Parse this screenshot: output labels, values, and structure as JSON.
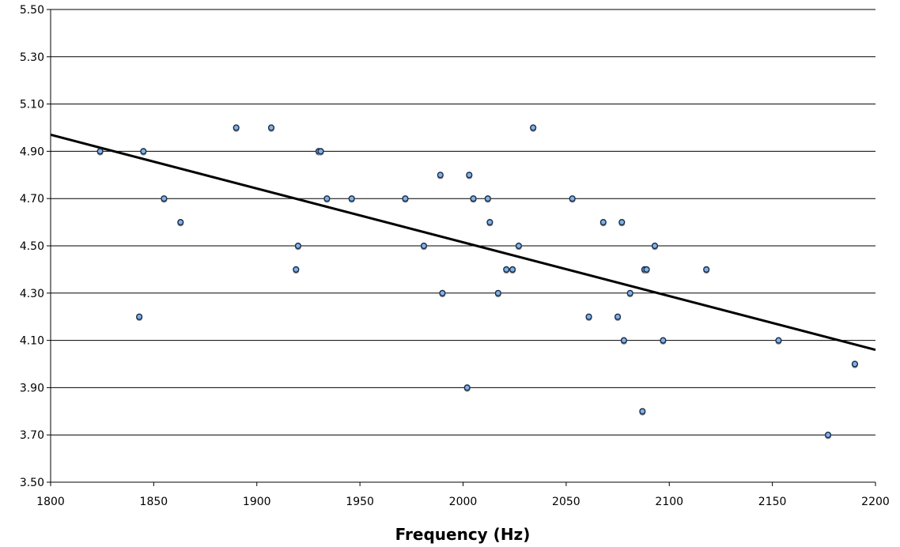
{
  "chart_data": {
    "type": "scatter",
    "title": "",
    "xlabel": "Frequency (Hz)",
    "ylabel": "",
    "xlim": [
      1800,
      2200
    ],
    "ylim": [
      3.5,
      5.5
    ],
    "xticks": [
      "1800",
      "1850",
      "1900",
      "1950",
      "2000",
      "2050",
      "2100",
      "2150",
      "2200"
    ],
    "yticks": [
      "3.50",
      "3.70",
      "3.90",
      "4.10",
      "4.30",
      "4.50",
      "4.70",
      "4.90",
      "5.10",
      "5.30",
      "5.50"
    ],
    "grid": "horizontal",
    "marker_color": "#7fb2e5",
    "marker_edge": "#1a2a4a",
    "trendline": {
      "x": [
        1800,
        2200
      ],
      "y": [
        4.97,
        4.06
      ],
      "color": "#000000"
    },
    "series": [
      {
        "points": [
          [
            1824,
            4.9
          ],
          [
            1843,
            4.2
          ],
          [
            1845,
            4.9
          ],
          [
            1855,
            4.7
          ],
          [
            1863,
            4.6
          ],
          [
            1890,
            5.0
          ],
          [
            1907,
            5.0
          ],
          [
            1919,
            4.4
          ],
          [
            1920,
            4.5
          ],
          [
            1930,
            4.9
          ],
          [
            1931,
            4.9
          ],
          [
            1934,
            4.7
          ],
          [
            1946,
            4.7
          ],
          [
            1972,
            4.7
          ],
          [
            1981,
            4.5
          ],
          [
            1989,
            4.8
          ],
          [
            1990,
            4.3
          ],
          [
            2002,
            3.9
          ],
          [
            2003,
            4.8
          ],
          [
            2005,
            4.7
          ],
          [
            2012,
            4.7
          ],
          [
            2013,
            4.6
          ],
          [
            2017,
            4.3
          ],
          [
            2021,
            4.4
          ],
          [
            2024,
            4.4
          ],
          [
            2027,
            4.5
          ],
          [
            2034,
            5.0
          ],
          [
            2053,
            4.7
          ],
          [
            2061,
            4.2
          ],
          [
            2068,
            4.6
          ],
          [
            2075,
            4.2
          ],
          [
            2077,
            4.6
          ],
          [
            2078,
            4.1
          ],
          [
            2081,
            4.3
          ],
          [
            2087,
            3.8
          ],
          [
            2088,
            4.4
          ],
          [
            2089,
            4.4
          ],
          [
            2093,
            4.5
          ],
          [
            2097,
            4.1
          ],
          [
            2118,
            4.4
          ],
          [
            2153,
            4.1
          ],
          [
            2177,
            3.7
          ],
          [
            2190,
            4.0
          ]
        ]
      }
    ]
  }
}
